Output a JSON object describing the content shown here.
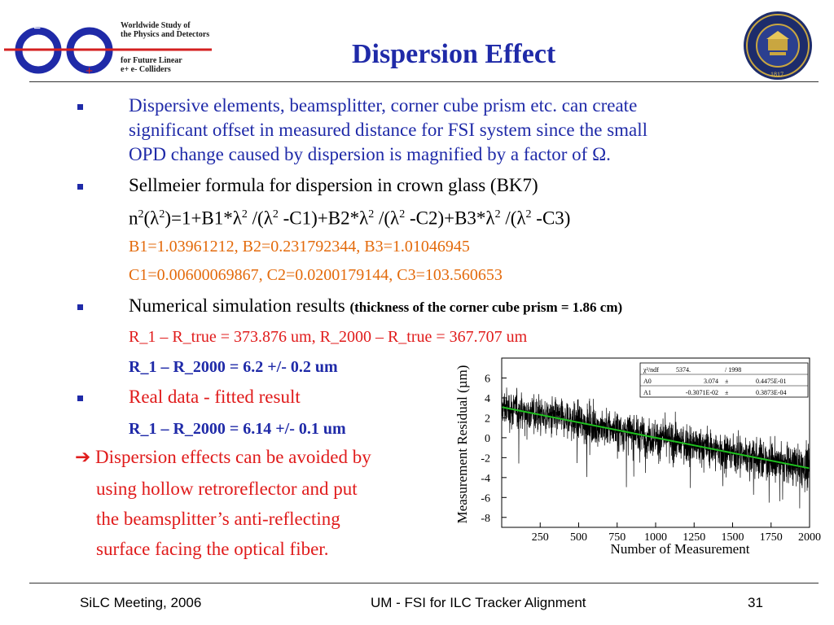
{
  "header": {
    "logo_lines": [
      "Worldwide Study of",
      "the Physics and Detectors",
      "for Future Linear",
      "e+ e-  Colliders"
    ],
    "logo_letters": [
      "e",
      "e",
      "−",
      "+"
    ],
    "seal_texts": [
      "THE UNIVERSITY OF MICHIGAN",
      "1817"
    ],
    "title": "Dispersion Effect"
  },
  "body": {
    "bullet1": [
      "Dispersive elements, beamsplitter, corner cube prism etc. can create",
      "significant offset in measured distance for FSI system since the small",
      "OPD change caused by dispersion is magnified by a factor of  Ω."
    ],
    "bullet2": "Sellmeier formula for dispersion in crown glass (BK7)",
    "formula": {
      "p1": "n",
      "s1": "2",
      "p2": "(λ",
      "s2": "2",
      "p3": ")=1+B1*λ",
      "s3": "2",
      "p4": " /(λ",
      "s4": "2",
      "p5": " -C1)+B2*λ",
      "s5": "2",
      "p6": " /(λ",
      "s6": "2",
      "p7": " -C2)+B3*λ",
      "s7": "2",
      "p8": " /(λ",
      "s8": "2",
      "p9": " -C3)"
    },
    "coef_b": "B1=1.03961212, B2=0.231792344, B3=1.01046945",
    "coef_c": "C1=0.00600069867, C2=0.0200179144, C3=103.560653",
    "bullet3_main": "Numerical simulation results ",
    "bullet3_bold": "(thickness of the corner cube prism = 1.86 cm)",
    "sim_line": "R_1 – R_true = 373.876 um, R_2000 – R_true = 367.707 um",
    "sim_result": "R_1 – R_2000 = 6.2 +/- 0.2 um",
    "bullet4": "Real data - fitted result",
    "real_result": "R_1 – R_2000 = 6.14 +/- 0.1 um",
    "arrow": "➔",
    "conclusion": [
      " Dispersion effects can be avoided by",
      "using hollow retroreflector and put",
      "the beamsplitter’s anti-reflecting",
      "surface facing the optical fiber."
    ]
  },
  "footer": {
    "left": "SiLC Meeting, 2006",
    "center": "UM - FSI for ILC Tracker Alignment",
    "page": "31"
  },
  "colors": {
    "title": "#1f2aa8",
    "orange": "#e36a0b",
    "red": "#e01b1b",
    "fit": "#1fc01f"
  },
  "chart_data": {
    "type": "line",
    "xlabel": "Number of Measurement",
    "ylabel": "Measurement Residual (µm)",
    "xlim": [
      0,
      2000
    ],
    "ylim": [
      -9,
      8
    ],
    "xticks": [
      "250",
      "500",
      "750",
      "1000",
      "1250",
      "1500",
      "1750",
      "2000"
    ],
    "yticks": [
      "6",
      "4",
      "2",
      "0",
      "-2",
      "-4",
      "-6",
      "-8"
    ],
    "n_points": 2000,
    "fit": {
      "intercept": 3.074,
      "slope": -0.003071
    },
    "stats": {
      "rows": [
        [
          "χ²/ndf",
          "5374.",
          "/ 1998",
          ""
        ],
        [
          "A0",
          "3.074",
          "±",
          "0.4475E-01"
        ],
        [
          "A1",
          "-0.3071E-02",
          "±",
          "0.3873E-04"
        ]
      ]
    }
  }
}
